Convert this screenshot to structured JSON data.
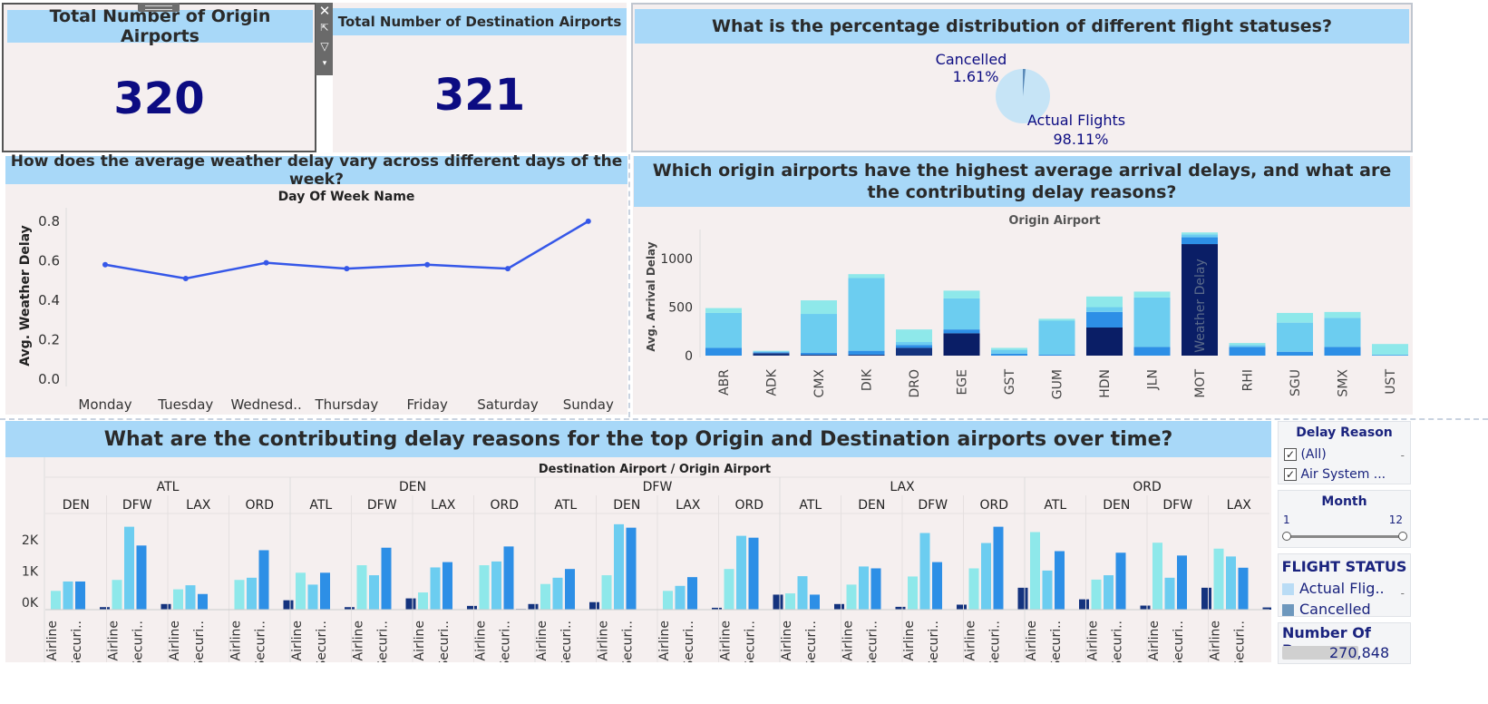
{
  "kpi_origin": {
    "title": "Total Number of Origin Airports",
    "value": "320"
  },
  "kpi_dest": {
    "title": "Total Number of Destination Airports",
    "value": "321"
  },
  "pie": {
    "title": "What is the percentage distribution of different flight statuses?",
    "cancelled_label": "Cancelled",
    "cancelled_pct": "1.61%",
    "actual_label": "Actual Flights",
    "actual_pct": "98.11%"
  },
  "weather": {
    "title": "How does the average weather delay vary across different days of the week?"
  },
  "origin_chart_title": "Which origin airports have the highest average arrival delays, and what are the contributing delay reasons?",
  "bottom_title": "What are the contributing delay reasons for the top  Origin and Destination airports over time?",
  "filters": {
    "delay_reason_title": "Delay Reason",
    "all_label": "(All)",
    "air_system_label": "Air System ...",
    "month_title": "Month",
    "month_min": "1",
    "month_max": "12",
    "flight_status_title": "FLIGHT STATUS",
    "status_actual": "Actual Flig..",
    "status_cancelled": "Cancelled",
    "records_title": "Number Of Reco..",
    "records_value": "270,848"
  },
  "colors": {
    "panel_bg": "#f5efef",
    "title_bar": "#a8d8f8",
    "kpi_number": "#0c0c82",
    "line": "#3557e8",
    "security": "#8ee8ea",
    "nas": "#6ccdf0",
    "air_system": "#2d8fe6",
    "carrier": "#14337e",
    "weather": "#0a1e66"
  },
  "chart_data": [
    {
      "type": "pie",
      "slices": [
        {
          "label": "Actual Flights",
          "value": 98.11
        },
        {
          "label": "Cancelled",
          "value": 1.61
        }
      ]
    },
    {
      "type": "line",
      "title": "Day Of Week Name",
      "ylabel": "Avg. Weather Delay",
      "x": [
        "Monday",
        "Tuesday",
        "Wednesd..",
        "Thursday",
        "Friday",
        "Saturday",
        "Sunday"
      ],
      "values": [
        0.58,
        0.51,
        0.59,
        0.56,
        0.58,
        0.56,
        0.8
      ],
      "yticks": [
        "0.0",
        "0.2",
        "0.4",
        "0.6",
        "0.8"
      ],
      "ylim": [
        0,
        0.85
      ]
    },
    {
      "type": "bar",
      "stacked": true,
      "title": "Origin Airport",
      "ylabel": "Avg. Arrival Delay",
      "categories": [
        "ABR",
        "ADK",
        "CMX",
        "DIK",
        "DRO",
        "EGE",
        "GST",
        "GUM",
        "HDN",
        "JLN",
        "MOT",
        "RHI",
        "SGU",
        "SMX",
        "UST"
      ],
      "yticks": [
        "0",
        "500",
        "1000"
      ],
      "ylim": [
        0,
        1300
      ],
      "annotation": "Weather Delay",
      "stacks": [
        [
          [
            0,
            0
          ],
          [
            0,
            "carrier"
          ],
          [
            80,
            "air_system"
          ],
          [
            360,
            "nas"
          ],
          [
            50,
            "security"
          ]
        ],
        [
          [
            0,
            0
          ],
          [
            25,
            "carrier"
          ],
          [
            10,
            "air_system"
          ],
          [
            10,
            "nas"
          ],
          [
            5,
            "security"
          ]
        ],
        [
          [
            0,
            0
          ],
          [
            10,
            "carrier"
          ],
          [
            20,
            "air_system"
          ],
          [
            400,
            "nas"
          ],
          [
            140,
            "security"
          ]
        ],
        [
          [
            0,
            0
          ],
          [
            10,
            "carrier"
          ],
          [
            40,
            "air_system"
          ],
          [
            750,
            "nas"
          ],
          [
            40,
            "security"
          ]
        ],
        [
          [
            0,
            0
          ],
          [
            80,
            "carrier"
          ],
          [
            30,
            "air_system"
          ],
          [
            30,
            "nas"
          ],
          [
            130,
            "security"
          ]
        ],
        [
          [
            230,
            "weather"
          ],
          [
            40,
            "air_system"
          ],
          [
            320,
            "nas"
          ],
          [
            80,
            "security"
          ]
        ],
        [
          [
            0,
            0
          ],
          [
            20,
            "air_system"
          ],
          [
            40,
            "nas"
          ],
          [
            20,
            "security"
          ]
        ],
        [
          [
            0,
            0
          ],
          [
            10,
            "air_system"
          ],
          [
            350,
            "nas"
          ],
          [
            20,
            "security"
          ]
        ],
        [
          [
            290,
            "weather"
          ],
          [
            160,
            "air_system"
          ],
          [
            50,
            "nas"
          ],
          [
            110,
            "security"
          ]
        ],
        [
          [
            0,
            0
          ],
          [
            90,
            "air_system"
          ],
          [
            510,
            "nas"
          ],
          [
            60,
            "security"
          ]
        ],
        [
          [
            1150,
            "weather"
          ],
          [
            70,
            "air_system"
          ],
          [
            30,
            "nas"
          ],
          [
            20,
            "security"
          ]
        ],
        [
          [
            0,
            0
          ],
          [
            90,
            "air_system"
          ],
          [
            20,
            "nas"
          ],
          [
            20,
            "security"
          ]
        ],
        [
          [
            0,
            0
          ],
          [
            40,
            "air_system"
          ],
          [
            300,
            "nas"
          ],
          [
            100,
            "security"
          ]
        ],
        [
          [
            0,
            0
          ],
          [
            90,
            "air_system"
          ],
          [
            300,
            "nas"
          ],
          [
            60,
            "security"
          ]
        ],
        [
          [
            0,
            0
          ],
          [
            5,
            "air_system"
          ],
          [
            5,
            "nas"
          ],
          [
            110,
            "security"
          ]
        ]
      ]
    },
    {
      "type": "bar",
      "title": "Destination Airport  /  Origin Airport",
      "yticks": [
        "0K",
        "1K",
        "2K"
      ],
      "ylim": [
        0,
        2900
      ],
      "bar_labels": [
        "Airline",
        "Securi.."
      ],
      "groups": [
        {
          "dest": "ATL",
          "origins": [
            {
              "name": "DEN",
              "values": [
                600,
                900,
                900,
                0,
                80
              ]
            },
            {
              "name": "DFW",
              "values": [
                950,
                2650,
                2050,
                0,
                180
              ]
            },
            {
              "name": "LAX",
              "values": [
                650,
                780,
                500,
                0,
                0
              ]
            },
            {
              "name": "ORD",
              "values": [
                950,
                1020,
                1900,
                0,
                300
              ]
            }
          ]
        },
        {
          "dest": "DEN",
          "origins": [
            {
              "name": "ATL",
              "values": [
                1180,
                800,
                1180,
                0,
                80
              ]
            },
            {
              "name": "DFW",
              "values": [
                1420,
                1100,
                1980,
                0,
                360
              ]
            },
            {
              "name": "LAX",
              "values": [
                550,
                1350,
                1520,
                0,
                120
              ]
            },
            {
              "name": "ORD",
              "values": [
                1420,
                1540,
                2020,
                20,
                180
              ]
            }
          ]
        },
        {
          "dest": "DFW",
          "origins": [
            {
              "name": "ATL",
              "values": [
                820,
                1020,
                1300,
                0,
                240
              ]
            },
            {
              "name": "DEN",
              "values": [
                1100,
                2730,
                2620,
                0,
                0
              ]
            },
            {
              "name": "LAX",
              "values": [
                600,
                760,
                1040,
                0,
                60
              ]
            },
            {
              "name": "ORD",
              "values": [
                1300,
                2360,
                2300,
                0,
                480
              ]
            }
          ]
        },
        {
          "dest": "LAX",
          "origins": [
            {
              "name": "ATL",
              "values": [
                520,
                1070,
                480,
                0,
                180
              ]
            },
            {
              "name": "DEN",
              "values": [
                800,
                1380,
                1320,
                0,
                90
              ]
            },
            {
              "name": "DFW",
              "values": [
                1060,
                2450,
                1520,
                0,
                160
              ]
            },
            {
              "name": "ORD",
              "values": [
                1320,
                2130,
                2650,
                0,
                700
              ]
            }
          ]
        },
        {
          "dest": "ORD",
          "origins": [
            {
              "name": "ATL",
              "values": [
                2480,
                1250,
                1870,
                0,
                330
              ]
            },
            {
              "name": "DEN",
              "values": [
                960,
                1100,
                1820,
                0,
                130
              ]
            },
            {
              "name": "DFW",
              "values": [
                2140,
                1020,
                1730,
                0,
                700
              ]
            },
            {
              "name": "LAX",
              "values": [
                1950,
                1700,
                1340,
                0,
                70
              ]
            }
          ]
        }
      ]
    }
  ]
}
